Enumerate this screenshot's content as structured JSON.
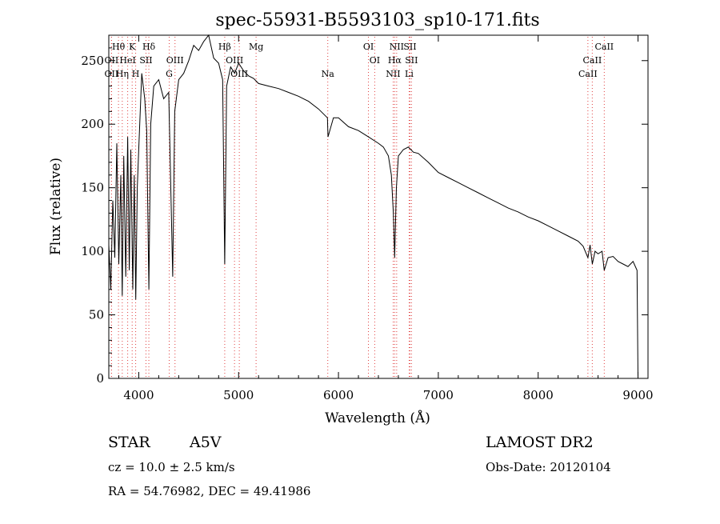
{
  "chart_data": {
    "type": "line",
    "title": "spec-55931-B5593103_sp10-171.fits",
    "xlabel": "Wavelength (Å)",
    "ylabel": "Flux (relative)",
    "xlim": [
      3700,
      9100
    ],
    "ylim": [
      0,
      270
    ],
    "xticks": [
      4000,
      5000,
      6000,
      7000,
      8000,
      9000
    ],
    "yticks": [
      0,
      50,
      100,
      150,
      200,
      250
    ],
    "grid": false,
    "legend": "none",
    "series": [
      {
        "x": [
          3700,
          3720,
          3740,
          3760,
          3780,
          3800,
          3820,
          3835,
          3850,
          3870,
          3889,
          3905,
          3920,
          3940,
          3955,
          3970,
          3985,
          4000,
          4030,
          4060,
          4080,
          4101,
          4120,
          4150,
          4200,
          4250,
          4300,
          4340,
          4360,
          4400,
          4450,
          4500,
          4550,
          4600,
          4650,
          4700,
          4750,
          4800,
          4840,
          4861,
          4880,
          4920,
          4960,
          5000,
          5050,
          5100,
          5150,
          5200,
          5300,
          5400,
          5500,
          5600,
          5700,
          5800,
          5890,
          5895,
          5950,
          6000,
          6100,
          6200,
          6300,
          6400,
          6450,
          6500,
          6530,
          6550,
          6563,
          6580,
          6600,
          6650,
          6700,
          6750,
          6800,
          6900,
          7000,
          7100,
          7200,
          7300,
          7400,
          7500,
          7600,
          7700,
          7800,
          7900,
          8000,
          8100,
          8200,
          8300,
          8400,
          8450,
          8498,
          8520,
          8542,
          8570,
          8600,
          8640,
          8662,
          8700,
          8750,
          8800,
          8850,
          8900,
          8950,
          8990,
          9000
        ],
        "y": [
          105,
          70,
          140,
          95,
          185,
          90,
          160,
          65,
          175,
          80,
          190,
          85,
          180,
          70,
          160,
          62,
          150,
          180,
          240,
          220,
          195,
          70,
          200,
          230,
          235,
          220,
          225,
          80,
          210,
          235,
          240,
          250,
          262,
          258,
          265,
          270,
          252,
          248,
          235,
          90,
          230,
          245,
          240,
          248,
          242,
          238,
          236,
          232,
          230,
          228,
          225,
          222,
          218,
          212,
          205,
          190,
          205,
          205,
          198,
          195,
          190,
          185,
          182,
          175,
          160,
          130,
          95,
          150,
          175,
          180,
          182,
          178,
          177,
          170,
          162,
          158,
          154,
          150,
          146,
          142,
          138,
          134,
          131,
          127,
          124,
          120,
          116,
          112,
          108,
          104,
          95,
          105,
          90,
          100,
          98,
          100,
          85,
          95,
          96,
          92,
          90,
          88,
          92,
          85,
          0
        ]
      }
    ],
    "lines": [
      {
        "label": "Hθ",
        "wl": 3797,
        "row": 0
      },
      {
        "label": "OII",
        "wl": 3727,
        "row": 1
      },
      {
        "label": "OII",
        "wl": 3727,
        "row": 2
      },
      {
        "label": "K",
        "wl": 3934,
        "row": 0
      },
      {
        "label": "HeI",
        "wl": 3889,
        "row": 1
      },
      {
        "label": "Hη",
        "wl": 3835,
        "row": 2
      },
      {
        "label": "SII",
        "wl": 4072,
        "row": 1
      },
      {
        "label": "H",
        "wl": 3969,
        "row": 2
      },
      {
        "label": "Hδ",
        "wl": 4101,
        "row": 0
      },
      {
        "label": "OIII",
        "wl": 4363,
        "row": 1
      },
      {
        "label": "G",
        "wl": 4305,
        "row": 2
      },
      {
        "label": "Hβ",
        "wl": 4861,
        "row": 0
      },
      {
        "label": "OIII",
        "wl": 4959,
        "row": 1
      },
      {
        "label": "OIII",
        "wl": 5007,
        "row": 2
      },
      {
        "label": "Mg",
        "wl": 5175,
        "row": 0
      },
      {
        "label": "Na",
        "wl": 5893,
        "row": 2
      },
      {
        "label": "OI",
        "wl": 6300,
        "row": 0
      },
      {
        "label": "OI",
        "wl": 6363,
        "row": 1
      },
      {
        "label": "NII",
        "wl": 6583,
        "row": 0
      },
      {
        "label": "SII",
        "wl": 6716,
        "row": 0
      },
      {
        "label": "Hα",
        "wl": 6563,
        "row": 1
      },
      {
        "label": "SII",
        "wl": 6731,
        "row": 1
      },
      {
        "label": "NII",
        "wl": 6548,
        "row": 2
      },
      {
        "label": "Li",
        "wl": 6708,
        "row": 2
      },
      {
        "label": "CaII",
        "wl": 8662,
        "row": 0
      },
      {
        "label": "CaII",
        "wl": 8542,
        "row": 1
      },
      {
        "label": "CaII",
        "wl": 8498,
        "row": 2
      }
    ]
  },
  "footer": {
    "object_type": "STAR",
    "subclass": "A5V",
    "survey": "LAMOST DR2",
    "cz": "cz = 10.0 ± 2.5 km/s",
    "obs_date": "Obs-Date: 20120104",
    "coords": "RA =  54.76982, DEC =  49.41986"
  }
}
